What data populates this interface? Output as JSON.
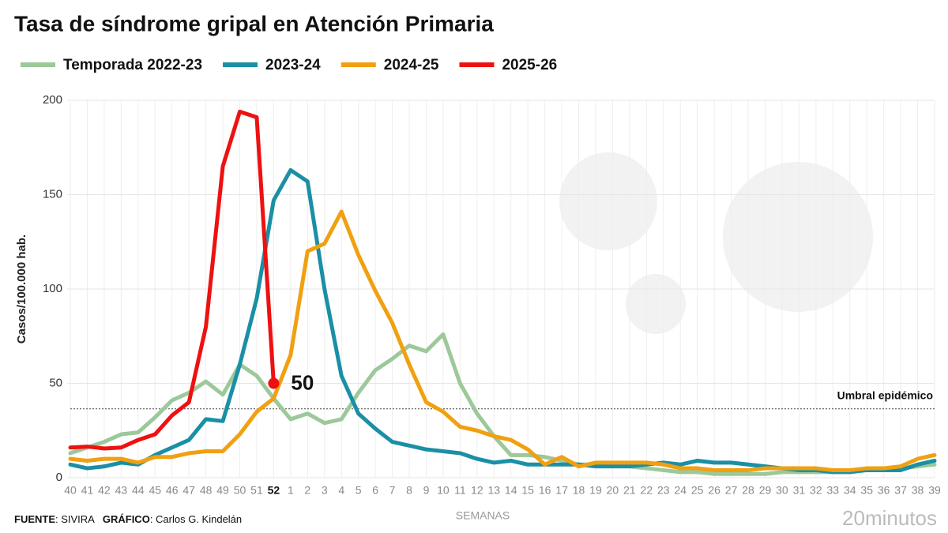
{
  "chart_data": {
    "type": "line",
    "title": "Tasa de síndrome gripal en Atención Primaria",
    "y_label": "Casos/100.000 hab.",
    "x_label": "SEMANAS",
    "categories": [
      "40",
      "41",
      "42",
      "43",
      "44",
      "45",
      "46",
      "47",
      "48",
      "49",
      "50",
      "51",
      "52",
      "1",
      "2",
      "3",
      "4",
      "5",
      "6",
      "7",
      "8",
      "9",
      "10",
      "11",
      "12",
      "13",
      "14",
      "15",
      "16",
      "17",
      "18",
      "19",
      "20",
      "21",
      "22",
      "23",
      "24",
      "25",
      "26",
      "27",
      "28",
      "29",
      "30",
      "31",
      "32",
      "33",
      "34",
      "35",
      "36",
      "37",
      "38",
      "39"
    ],
    "ylim": [
      0,
      200
    ],
    "yticks": [
      0,
      50,
      100,
      150,
      200
    ],
    "grid": true,
    "legend": "top",
    "threshold": {
      "label": "Umbral epidémico",
      "value": 36.5
    },
    "series": [
      {
        "name": "Temporada 2022-23",
        "color": "#9cc89a",
        "values": [
          13,
          16,
          19,
          23,
          24,
          32,
          41,
          45,
          51,
          44,
          60,
          54,
          42,
          31,
          34,
          29,
          31,
          45,
          57,
          63,
          70,
          67,
          76,
          50,
          34,
          22,
          12,
          12,
          11,
          9,
          7,
          7,
          7,
          6,
          5,
          4,
          3,
          3,
          2,
          2,
          2,
          2,
          3,
          3,
          3,
          3,
          4,
          4,
          5,
          5,
          6,
          7
        ]
      },
      {
        "name": "2023-24",
        "color": "#1a8fa5",
        "values": [
          7,
          5,
          6,
          8,
          7,
          12,
          16,
          20,
          31,
          30,
          60,
          95,
          147,
          163,
          157,
          100,
          54,
          34,
          26,
          19,
          17,
          15,
          14,
          13,
          10,
          8,
          9,
          7,
          7,
          7,
          7,
          6,
          6,
          6,
          7,
          8,
          7,
          9,
          8,
          8,
          7,
          6,
          5,
          4,
          4,
          3,
          3,
          4,
          4,
          4,
          7,
          9
        ]
      },
      {
        "name": "2024-25",
        "color": "#f0a010",
        "values": [
          10,
          9,
          10,
          10,
          8,
          11,
          11,
          13,
          14,
          14,
          23,
          35,
          42,
          65,
          120,
          124,
          141,
          118,
          99,
          82,
          60,
          40,
          35,
          27,
          25,
          22,
          20,
          15,
          7,
          11,
          6,
          8,
          8,
          8,
          8,
          7,
          5,
          5,
          4,
          4,
          4,
          5,
          5,
          5,
          5,
          4,
          4,
          5,
          5,
          6,
          10,
          12
        ]
      },
      {
        "name": "2025-26",
        "color": "#ee1111",
        "values": [
          16,
          16.5,
          15.5,
          16,
          20,
          23,
          33,
          40,
          80,
          165,
          194,
          191,
          50,
          null,
          null,
          null,
          null,
          null,
          null,
          null,
          null,
          null,
          null,
          null,
          null,
          null,
          null,
          null,
          null,
          null,
          null,
          null,
          null,
          null,
          null,
          null,
          null,
          null,
          null,
          null,
          null,
          null,
          null,
          null,
          null,
          null,
          null,
          null,
          null,
          null,
          null,
          null
        ]
      }
    ]
  },
  "footer": {
    "source_label": "FUENTE",
    "source": ": SIVIRA",
    "credit_label": "GRÁFICO",
    "credit": ": Carlos G. Kindelán",
    "brand": "20minutos"
  }
}
